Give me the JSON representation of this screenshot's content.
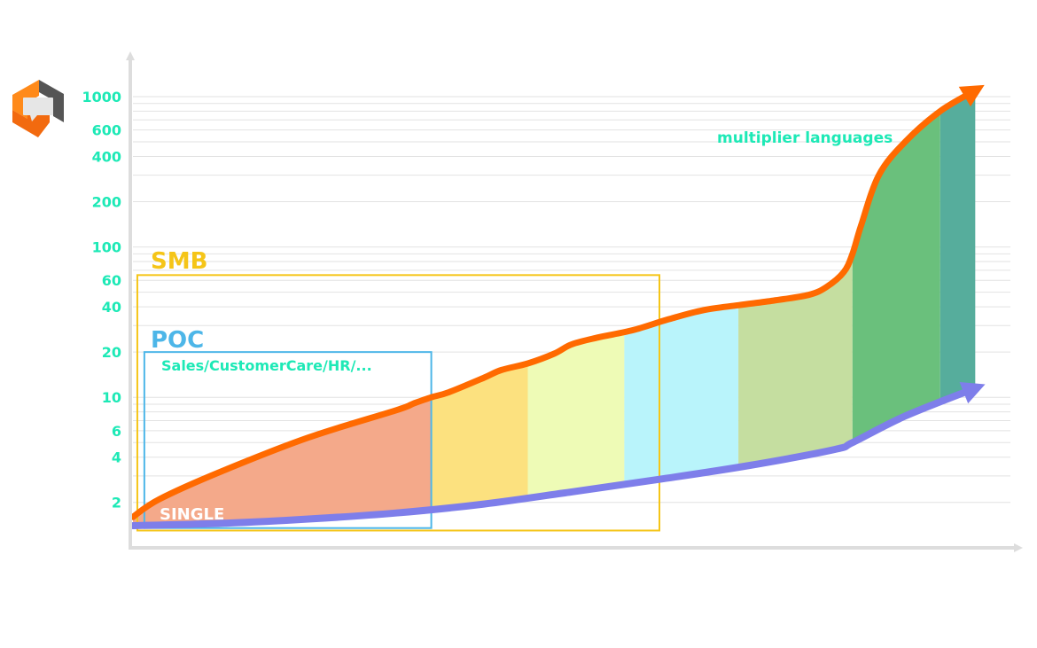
{
  "chart_data": {
    "type": "area",
    "y_scale": "log",
    "grid": true,
    "y_ticks": [
      2,
      4,
      6,
      10,
      20,
      40,
      60,
      100,
      200,
      400,
      600,
      1000
    ],
    "y_tick_labels": [
      "2",
      "4",
      "6",
      "10",
      "20",
      "40",
      "60",
      "100",
      "200",
      "400",
      "600",
      "1000"
    ],
    "ylim": [
      1.5,
      1500
    ],
    "x_range": [
      0,
      100
    ],
    "series": [
      {
        "role": "upper",
        "color": "#ff6a00",
        "points": [
          [
            0,
            1.6
          ],
          [
            3,
            2.1
          ],
          [
            10,
            3.2
          ],
          [
            20,
            5.4
          ],
          [
            30,
            8.2
          ],
          [
            32,
            9.1
          ],
          [
            34,
            10.0
          ],
          [
            36,
            10.8
          ],
          [
            40,
            13.5
          ],
          [
            42,
            15.2
          ],
          [
            45,
            16.8
          ],
          [
            48,
            19.5
          ],
          [
            50,
            22.5
          ],
          [
            53,
            25.0
          ],
          [
            57,
            28.0
          ],
          [
            61,
            33.0
          ],
          [
            65,
            38.0
          ],
          [
            69,
            41.0
          ],
          [
            73,
            44.0
          ],
          [
            77,
            48.0
          ],
          [
            79,
            54.0
          ],
          [
            81,
            68.0
          ],
          [
            82,
            90.0
          ],
          [
            83,
            140.0
          ],
          [
            85,
            300.0
          ],
          [
            88,
            500.0
          ],
          [
            92,
            800.0
          ],
          [
            96,
            1100.0
          ]
        ]
      },
      {
        "role": "lower",
        "color": "#7e7eea",
        "points": [
          [
            0,
            1.4
          ],
          [
            10,
            1.45
          ],
          [
            20,
            1.55
          ],
          [
            30,
            1.7
          ],
          [
            40,
            1.95
          ],
          [
            50,
            2.35
          ],
          [
            60,
            2.85
          ],
          [
            70,
            3.5
          ],
          [
            80,
            4.5
          ],
          [
            82,
            5.0
          ],
          [
            88,
            7.5
          ],
          [
            96,
            11.5
          ]
        ]
      }
    ],
    "bands": [
      {
        "x": [
          0,
          34
        ],
        "color": "#f4a98a"
      },
      {
        "x": [
          34,
          45
        ],
        "color": "#fce17f"
      },
      {
        "x": [
          45,
          56
        ],
        "color": "#eefbb6"
      },
      {
        "x": [
          56,
          69
        ],
        "color": "#b9f4fb"
      },
      {
        "x": [
          69,
          82
        ],
        "color": "#c5dea0"
      },
      {
        "x": [
          82,
          92
        ],
        "color": "#6ac07c"
      },
      {
        "x": [
          92,
          96
        ],
        "color": "#56ad9c"
      }
    ],
    "regions": [
      {
        "label": "SMB",
        "x": [
          0.5,
          60
        ],
        "y": [
          1.3,
          65
        ],
        "color": "#f5c518"
      },
      {
        "label": "POC",
        "x": [
          1.3,
          34
        ],
        "y": [
          1.35,
          20
        ],
        "color": "#4db6e8"
      }
    ],
    "annotations": {
      "sales": "Sales/CustomerCare/HR/...",
      "single": "SINGLE",
      "multiplier": "multiplier languages"
    }
  },
  "logo": {
    "name": "logo-icon",
    "colors": [
      "#ff8a1a",
      "#f26a0f",
      "#ff6a00",
      "#555555"
    ]
  }
}
